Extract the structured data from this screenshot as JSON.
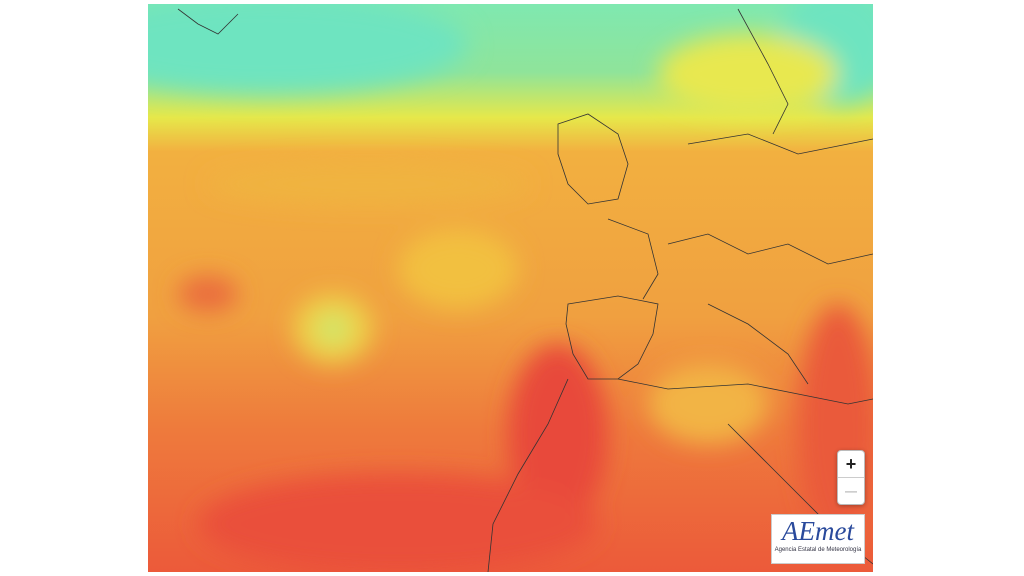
{
  "zoom": {
    "in": "+",
    "out": "—"
  },
  "logo": {
    "name": "AEmet",
    "agency": "Agencia Estatal de Meteorología"
  }
}
